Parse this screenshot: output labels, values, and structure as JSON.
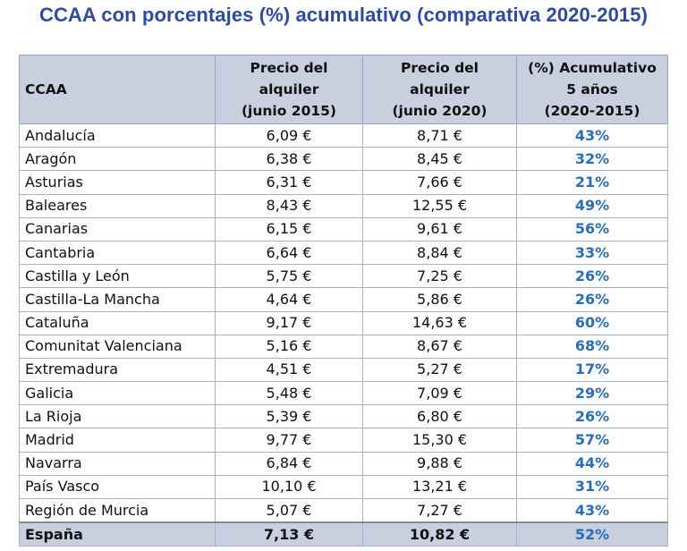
{
  "chart_data": {
    "type": "table",
    "title": "CCAA con porcentajes (%) acumulativo (comparativa 2020-2015)",
    "columns": [
      "CCAA",
      "Precio del alquiler (junio 2015)",
      "Precio del alquiler (junio 2020)",
      "(%) Acumulativo 5 años (2020-2015)"
    ],
    "header_lines": [
      [
        "CCAA"
      ],
      [
        "Precio del",
        "alquiler",
        "(junio 2015)"
      ],
      [
        "Precio del alquiler",
        "(junio 2020)"
      ],
      [
        "(%) Acumulativo",
        "5 años",
        "(2020-2015)"
      ]
    ],
    "rows": [
      {
        "ccaa": "Andalucía",
        "p2015": "6,09 €",
        "p2020": "8,71 €",
        "pct": "43%"
      },
      {
        "ccaa": "Aragón",
        "p2015": "6,38 €",
        "p2020": "8,45 €",
        "pct": "32%"
      },
      {
        "ccaa": "Asturias",
        "p2015": "6,31 €",
        "p2020": "7,66 €",
        "pct": "21%"
      },
      {
        "ccaa": "Baleares",
        "p2015": "8,43 €",
        "p2020": "12,55 €",
        "pct": "49%"
      },
      {
        "ccaa": "Canarias",
        "p2015": "6,15 €",
        "p2020": "9,61 €",
        "pct": "56%"
      },
      {
        "ccaa": "Cantabria",
        "p2015": "6,64 €",
        "p2020": "8,84 €",
        "pct": "33%"
      },
      {
        "ccaa": "Castilla y León",
        "p2015": "5,75 €",
        "p2020": "7,25 €",
        "pct": "26%"
      },
      {
        "ccaa": "Castilla-La Mancha",
        "p2015": "4,64 €",
        "p2020": "5,86 €",
        "pct": "26%"
      },
      {
        "ccaa": "Cataluña",
        "p2015": "9,17 €",
        "p2020": "14,63 €",
        "pct": "60%"
      },
      {
        "ccaa": "Comunitat Valenciana",
        "p2015": "5,16 €",
        "p2020": "8,67 €",
        "pct": "68%"
      },
      {
        "ccaa": "Extremadura",
        "p2015": "4,51 €",
        "p2020": "5,27 €",
        "pct": "17%"
      },
      {
        "ccaa": "Galicia",
        "p2015": "5,48 €",
        "p2020": "7,09 €",
        "pct": "29%"
      },
      {
        "ccaa": "La Rioja",
        "p2015": "5,39 €",
        "p2020": "6,80 €",
        "pct": "26%"
      },
      {
        "ccaa": "Madrid",
        "p2015": "9,77 €",
        "p2020": "15,30 €",
        "pct": "57%"
      },
      {
        "ccaa": "Navarra",
        "p2015": "6,84 €",
        "p2020": "9,88 €",
        "pct": "44%"
      },
      {
        "ccaa": "País Vasco",
        "p2015": "10,10 €",
        "p2020": "13,21 €",
        "pct": "31%"
      },
      {
        "ccaa": "Región de Murcia",
        "p2015": "5,07 €",
        "p2020": "7,27 €",
        "pct": "43%"
      }
    ],
    "total": {
      "ccaa": "España",
      "p2015": "7,13 €",
      "p2020": "10,82 €",
      "pct": "52%"
    },
    "colors": {
      "title": "#2f4aa3",
      "header_bg": "#c8d0e0",
      "percent_text": "#2a6db8",
      "border": "#a9b3c6"
    }
  }
}
